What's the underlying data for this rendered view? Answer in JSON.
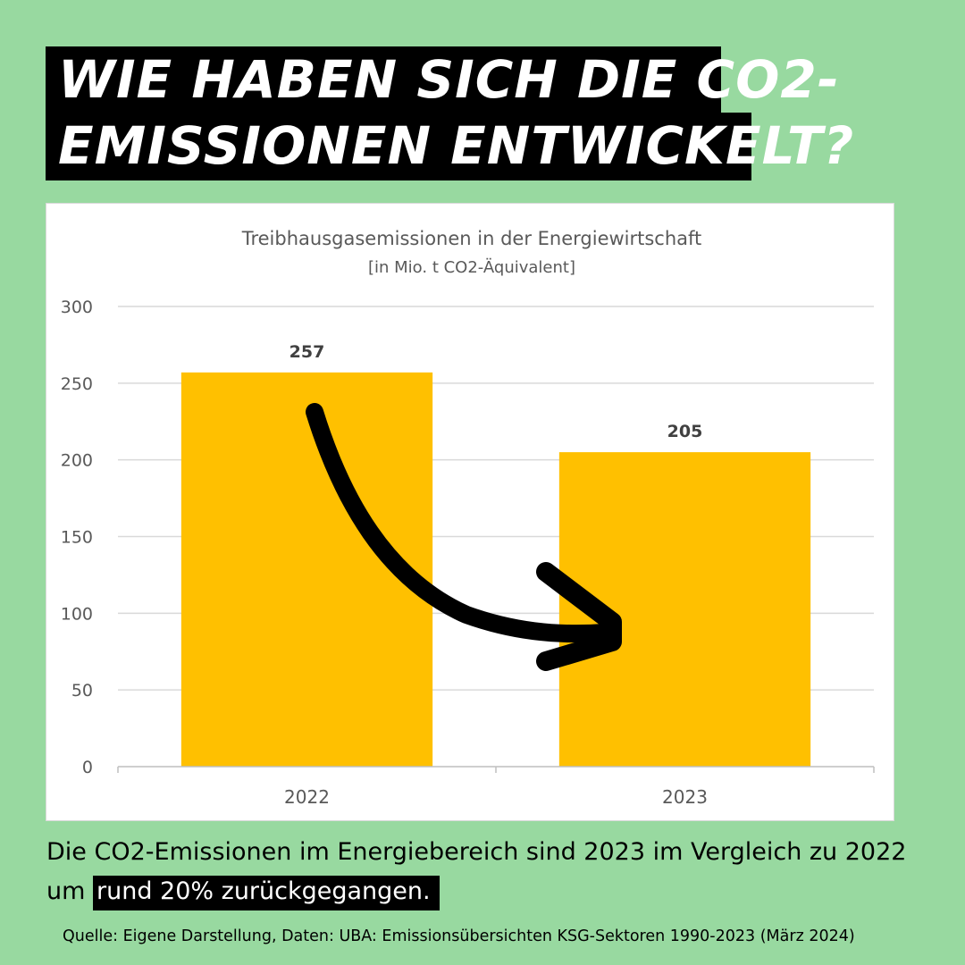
{
  "headline": {
    "line1": "WIE HABEN SICH DIE CO2-",
    "line2": "EMISSIONEN ENTWICKELT?"
  },
  "chart_data": {
    "type": "bar",
    "title": "Treibhausgasemissionen  in der Energiewirtschaft",
    "subtitle": "[in Mio. t CO2-Äquivalent]",
    "categories": [
      "2022",
      "2023"
    ],
    "values": [
      257,
      205
    ],
    "data_labels": [
      "257",
      "205"
    ],
    "ylim": [
      0,
      300
    ],
    "yticks": [
      0,
      50,
      100,
      150,
      200,
      250,
      300
    ],
    "grid": true,
    "bar_color": "#ffc000",
    "annotation": "black-curved-arrow-from-2022-to-2023"
  },
  "caption": {
    "text_before": "Die CO2-Emissionen im Energiebereich sind 2023 im Vergleich zu 2022 um ",
    "highlight": "rund 20% zurückgegangen."
  },
  "source": "Quelle: Eigene Darstellung, Daten: UBA: Emissionsübersichten KSG-Sektoren 1990-2023 (März 2024)",
  "colors": {
    "background": "#98d9a0",
    "accent": "#ffc000",
    "text_dark": "#000000"
  }
}
